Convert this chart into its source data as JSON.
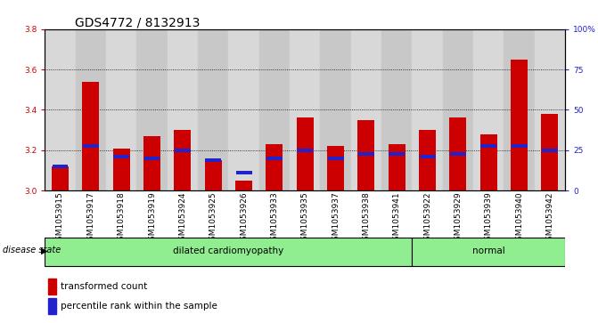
{
  "title": "GDS4772 / 8132913",
  "samples": [
    "GSM1053915",
    "GSM1053917",
    "GSM1053918",
    "GSM1053919",
    "GSM1053924",
    "GSM1053925",
    "GSM1053926",
    "GSM1053933",
    "GSM1053935",
    "GSM1053937",
    "GSM1053938",
    "GSM1053941",
    "GSM1053922",
    "GSM1053929",
    "GSM1053939",
    "GSM1053940",
    "GSM1053942"
  ],
  "red_values": [
    3.12,
    3.54,
    3.21,
    3.27,
    3.3,
    3.15,
    3.05,
    3.23,
    3.36,
    3.22,
    3.35,
    3.23,
    3.3,
    3.36,
    3.28,
    3.65,
    3.38
  ],
  "blue_values": [
    3.12,
    3.22,
    3.17,
    3.16,
    3.2,
    3.15,
    3.09,
    3.16,
    3.2,
    3.16,
    3.18,
    3.18,
    3.17,
    3.18,
    3.22,
    3.22,
    3.2
  ],
  "ylim": [
    3.0,
    3.8
  ],
  "yticks": [
    3.0,
    3.2,
    3.4,
    3.6,
    3.8
  ],
  "right_yticks_vals": [
    0,
    25,
    50,
    75,
    100
  ],
  "right_yticks_labels": [
    "0",
    "25",
    "50",
    "75",
    "100%"
  ],
  "bar_width": 0.55,
  "red_color": "#cc0000",
  "blue_color": "#2222cc",
  "col_bg_even": "#d8d8d8",
  "col_bg_odd": "#c8c8c8",
  "dc_count": 12,
  "legend_items": [
    "transformed count",
    "percentile rank within the sample"
  ],
  "title_fontsize": 10,
  "tick_fontsize": 6.5,
  "label_fontsize": 8
}
